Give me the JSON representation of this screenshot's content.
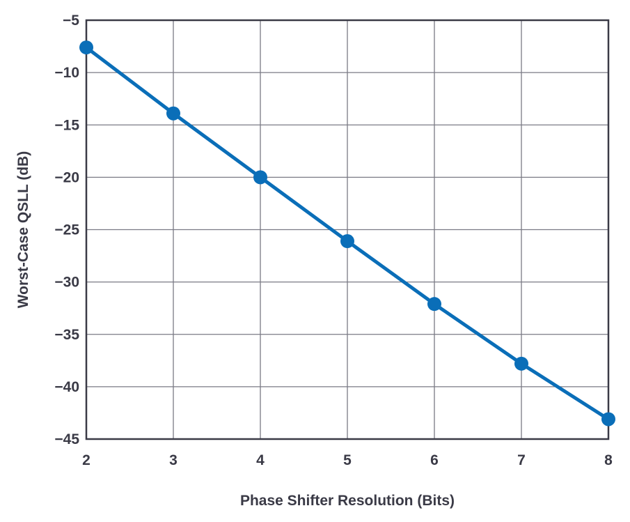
{
  "chart_data": {
    "type": "line",
    "title": "",
    "xlabel": "Phase Shifter Resolution (Bits)",
    "ylabel": "Worst-Case QSLL (dB)",
    "xlim": [
      2,
      8
    ],
    "ylim": [
      -45,
      -5
    ],
    "xticks": [
      "2",
      "3",
      "4",
      "5",
      "6",
      "7",
      "8"
    ],
    "yticks": [
      "−5",
      "−10",
      "−15",
      "−20",
      "−25",
      "−30",
      "−35",
      "−40",
      "−45"
    ],
    "grid": true,
    "series": [
      {
        "color": "#0a6eb8",
        "x": [
          2,
          3,
          4,
          5,
          6,
          7,
          8
        ],
        "y": [
          -7.6,
          -13.9,
          -20.0,
          -26.1,
          -32.1,
          -37.8,
          -43.1
        ]
      }
    ]
  }
}
